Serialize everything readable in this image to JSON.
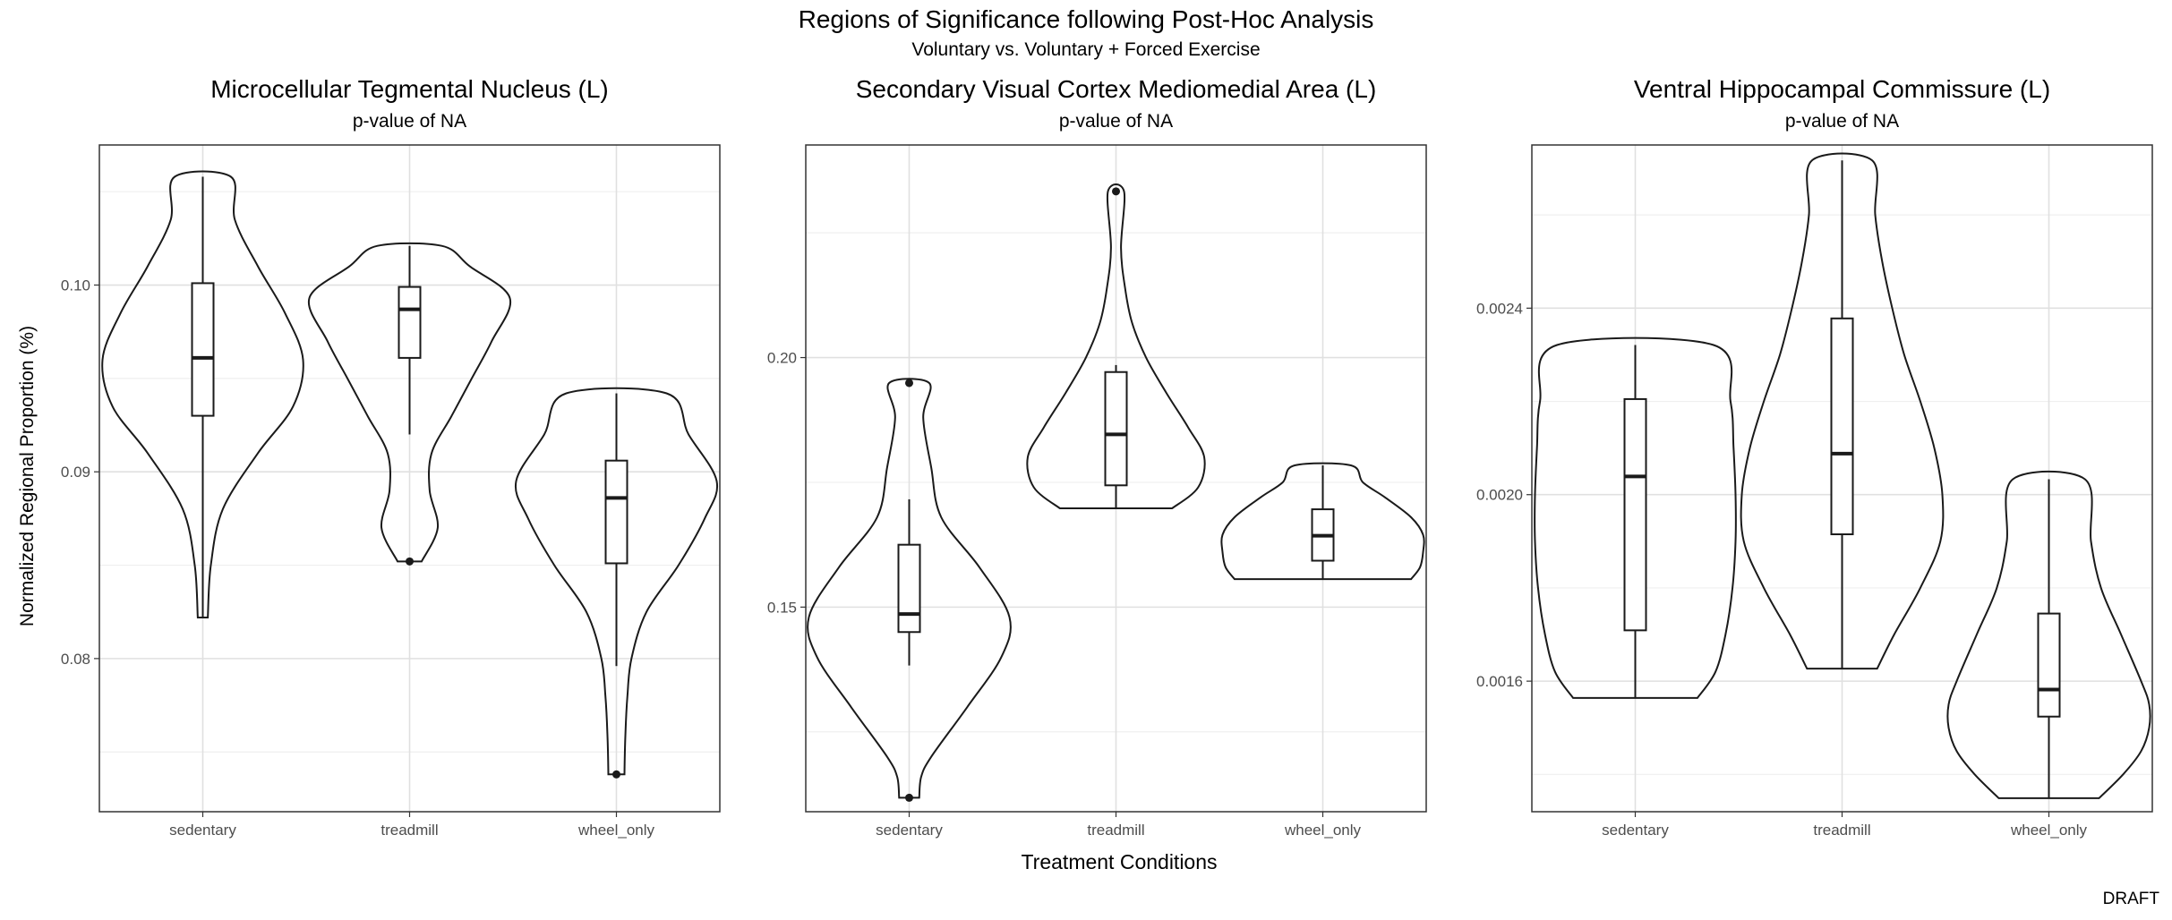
{
  "figure": {
    "title": "Regions of Significance following Post-Hoc Analysis",
    "subtitle": "Voluntary vs. Voluntary + Forced Exercise",
    "xlabel": "Treatment Conditions",
    "ylabel": "Normalized Regional Proportion (%)",
    "caption": "DRAFT"
  },
  "colors": {
    "line": "#1a1a1a",
    "grid_major": "#e0e0e0",
    "grid_minor": "#efefef",
    "border": "#333333",
    "tick_text": "#4d4d4d"
  },
  "chart_data": [
    {
      "type": "violin",
      "title": "Microcellular Tegmental Nucleus (L)",
      "subtitle": "p-value of  NA",
      "categories": [
        "sedentary",
        "treadmill",
        "wheel_only"
      ],
      "ylim": [
        0.0718,
        0.1075
      ],
      "yticks": [
        0.08,
        0.09,
        0.1
      ],
      "ytick_labels": [
        "0.08",
        "0.09",
        "0.10"
      ],
      "grid": true,
      "groups": [
        {
          "name": "sedentary",
          "min": 0.0822,
          "max": 0.1058,
          "q1": 0.093,
          "median": 0.0961,
          "q3": 0.1001,
          "whisker_low": 0.0822,
          "whisker_high": 0.1058,
          "outliers": [],
          "density": [
            [
              0.0822,
              0.05
            ],
            [
              0.085,
              0.08
            ],
            [
              0.088,
              0.2
            ],
            [
              0.091,
              0.55
            ],
            [
              0.0935,
              0.9
            ],
            [
              0.096,
              1.0
            ],
            [
              0.0985,
              0.82
            ],
            [
              0.101,
              0.55
            ],
            [
              0.1035,
              0.32
            ],
            [
              0.1058,
              0.28
            ]
          ]
        },
        {
          "name": "treadmill",
          "min": 0.0852,
          "max": 0.1021,
          "q1": 0.0961,
          "median": 0.0987,
          "q3": 0.0999,
          "whisker_low": 0.092,
          "whisker_high": 0.1021,
          "outliers": [
            0.0852
          ],
          "density": [
            [
              0.0852,
              0.12
            ],
            [
              0.087,
              0.28
            ],
            [
              0.089,
              0.2
            ],
            [
              0.091,
              0.22
            ],
            [
              0.093,
              0.42
            ],
            [
              0.095,
              0.62
            ],
            [
              0.097,
              0.82
            ],
            [
              0.0993,
              1.0
            ],
            [
              0.101,
              0.6
            ],
            [
              0.1021,
              0.32
            ]
          ]
        },
        {
          "name": "wheel_only",
          "min": 0.0738,
          "max": 0.0942,
          "q1": 0.0851,
          "median": 0.0886,
          "q3": 0.0906,
          "whisker_low": 0.0796,
          "whisker_high": 0.0942,
          "outliers": [
            0.0738
          ],
          "density": [
            [
              0.0738,
              0.08
            ],
            [
              0.076,
              0.09
            ],
            [
              0.078,
              0.11
            ],
            [
              0.08,
              0.15
            ],
            [
              0.0825,
              0.3
            ],
            [
              0.085,
              0.62
            ],
            [
              0.0875,
              0.88
            ],
            [
              0.0895,
              1.0
            ],
            [
              0.092,
              0.72
            ],
            [
              0.0942,
              0.5
            ]
          ]
        }
      ]
    },
    {
      "type": "violin",
      "title": "Secondary Visual Cortex Mediomedial Area (L)",
      "subtitle": "p-value of  NA",
      "categories": [
        "sedentary",
        "treadmill",
        "wheel_only"
      ],
      "ylim": [
        0.109,
        0.2426
      ],
      "yticks": [
        0.15,
        0.2
      ],
      "ytick_labels": [
        "0.15",
        "0.20"
      ],
      "grid": true,
      "groups": [
        {
          "name": "sedentary",
          "min": 0.1118,
          "max": 0.1949,
          "q1": 0.145,
          "median": 0.1486,
          "q3": 0.1625,
          "whisker_low": 0.1383,
          "whisker_high": 0.1716,
          "outliers": [
            0.1118,
            0.1949
          ],
          "density": [
            [
              0.1118,
              0.1
            ],
            [
              0.116,
              0.12
            ],
            [
              0.12,
              0.22
            ],
            [
              0.13,
              0.58
            ],
            [
              0.14,
              0.92
            ],
            [
              0.148,
              1.0
            ],
            [
              0.158,
              0.7
            ],
            [
              0.168,
              0.32
            ],
            [
              0.178,
              0.22
            ],
            [
              0.188,
              0.14
            ],
            [
              0.1949,
              0.2
            ]
          ]
        },
        {
          "name": "treadmill",
          "min": 0.1698,
          "max": 0.2333,
          "q1": 0.1744,
          "median": 0.1846,
          "q3": 0.1971,
          "whisker_low": 0.1698,
          "whisker_high": 0.1985,
          "outliers": [
            0.2333
          ],
          "density": [
            [
              0.1698,
              0.56
            ],
            [
              0.174,
              0.82
            ],
            [
              0.18,
              0.88
            ],
            [
              0.186,
              0.72
            ],
            [
              0.193,
              0.5
            ],
            [
              0.2,
              0.3
            ],
            [
              0.207,
              0.16
            ],
            [
              0.214,
              0.09
            ],
            [
              0.222,
              0.05
            ],
            [
              0.2333,
              0.08
            ]
          ]
        },
        {
          "name": "wheel_only",
          "min": 0.1556,
          "max": 0.1784,
          "q1": 0.1593,
          "median": 0.1643,
          "q3": 0.1696,
          "whisker_low": 0.1556,
          "whisker_high": 0.1784,
          "outliers": [],
          "density": [
            [
              0.1556,
              0.88
            ],
            [
              0.158,
              0.97
            ],
            [
              0.161,
              1.0
            ],
            [
              0.1645,
              1.0
            ],
            [
              0.168,
              0.88
            ],
            [
              0.172,
              0.62
            ],
            [
              0.175,
              0.4
            ],
            [
              0.1784,
              0.28
            ]
          ]
        }
      ]
    },
    {
      "type": "violin",
      "title": "Ventral Hippocampal Commissure (L)",
      "subtitle": "p-value of  NA",
      "categories": [
        "sedentary",
        "treadmill",
        "wheel_only"
      ],
      "ylim": [
        0.00132,
        0.00275
      ],
      "yticks": [
        0.0016,
        0.002,
        0.0024
      ],
      "ytick_labels": [
        "0.0016",
        "0.0020",
        "0.0024"
      ],
      "grid": true,
      "groups": [
        {
          "name": "sedentary",
          "min": 0.001564,
          "max": 0.002321,
          "q1": 0.001709,
          "median": 0.002039,
          "q3": 0.002205,
          "whisker_low": 0.001564,
          "whisker_high": 0.002321,
          "outliers": [],
          "density": [
            [
              0.001564,
              0.62
            ],
            [
              0.00162,
              0.8
            ],
            [
              0.0017,
              0.9
            ],
            [
              0.0018,
              0.97
            ],
            [
              0.0019,
              1.0
            ],
            [
              0.002,
              1.0
            ],
            [
              0.0021,
              0.98
            ],
            [
              0.0022,
              0.95
            ],
            [
              0.002321,
              0.78
            ]
          ]
        },
        {
          "name": "treadmill",
          "min": 0.001627,
          "max": 0.002717,
          "q1": 0.001915,
          "median": 0.002088,
          "q3": 0.002378,
          "whisker_low": 0.001627,
          "whisker_high": 0.002717,
          "outliers": [],
          "density": [
            [
              0.001627,
              0.35
            ],
            [
              0.0017,
              0.52
            ],
            [
              0.0018,
              0.78
            ],
            [
              0.0019,
              0.98
            ],
            [
              0.002,
              1.0
            ],
            [
              0.0021,
              0.92
            ],
            [
              0.0022,
              0.78
            ],
            [
              0.0023,
              0.62
            ],
            [
              0.0024,
              0.5
            ],
            [
              0.0025,
              0.4
            ],
            [
              0.0026,
              0.33
            ],
            [
              0.002717,
              0.3
            ]
          ]
        },
        {
          "name": "wheel_only",
          "min": 0.001349,
          "max": 0.002033,
          "q1": 0.001524,
          "median": 0.001582,
          "q3": 0.001745,
          "whisker_low": 0.001349,
          "whisker_high": 0.002033,
          "outliers": [],
          "density": [
            [
              0.001349,
              0.5
            ],
            [
              0.0014,
              0.74
            ],
            [
              0.00145,
              0.92
            ],
            [
              0.0015,
              1.0
            ],
            [
              0.00155,
              1.0
            ],
            [
              0.0016,
              0.92
            ],
            [
              0.0017,
              0.72
            ],
            [
              0.0018,
              0.52
            ],
            [
              0.0019,
              0.42
            ],
            [
              0.002033,
              0.36
            ]
          ]
        }
      ]
    }
  ]
}
